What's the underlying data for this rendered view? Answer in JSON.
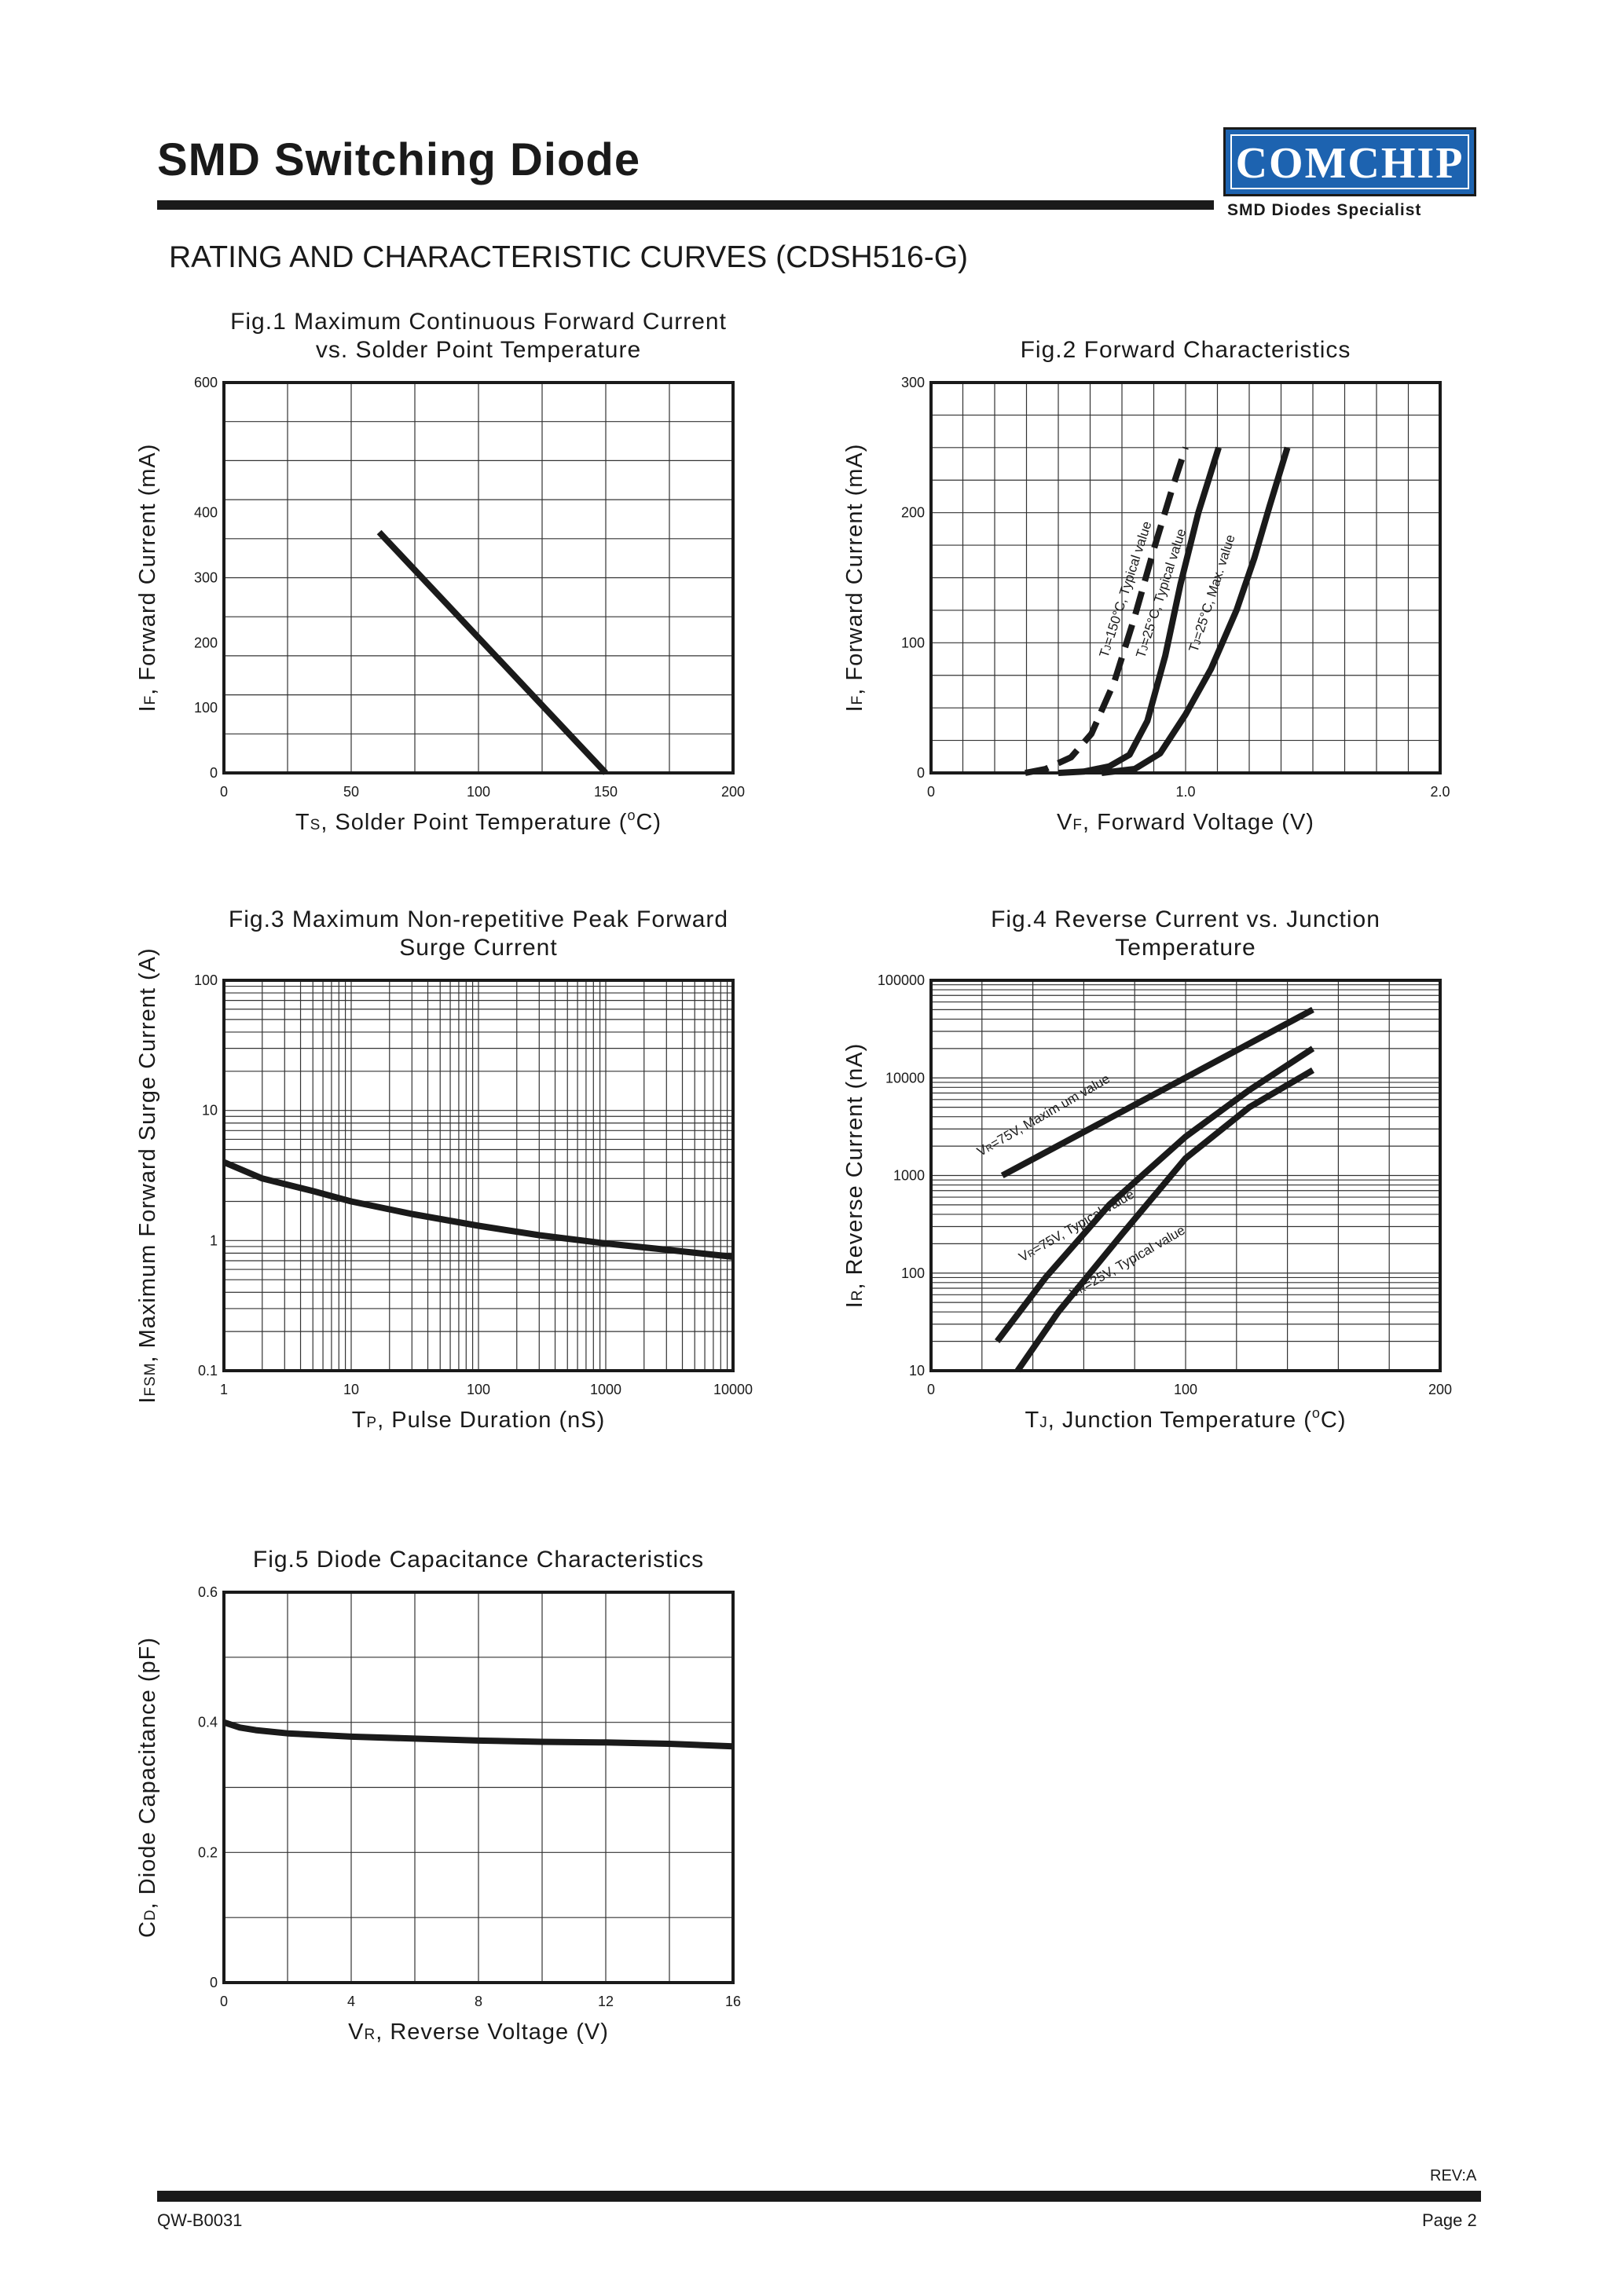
{
  "header": {
    "title": "SMD Switching Diode",
    "logo": {
      "text": "COMCHIP",
      "tagline": "SMD Diodes Specialist",
      "color": "#1d63b0"
    },
    "section_heading": "RATING AND CHARACTERISTIC CURVES (CDSH516-G)"
  },
  "footer": {
    "rev": "REV:A",
    "code": "QW-B0031",
    "page": "Page 2"
  },
  "chart_data": [
    {
      "id": "fig1",
      "type": "line",
      "scale": "linear",
      "title": [
        "Fig.1 Maximum Continuous Forward Current",
        "vs. Solder Point Temperature"
      ],
      "xlabel": {
        "main": "T",
        "sub": "S",
        "rest": ", Solder Point Temperature (",
        "sup": "o",
        "end": "C)"
      },
      "ylabel": {
        "main": "I",
        "sub": "F",
        "rest": ", Forward Current (mA)"
      },
      "xlim": [
        0,
        200
      ],
      "ylim": [
        0,
        600
      ],
      "xticks": [
        "0",
        "50",
        "100",
        "150",
        "200"
      ],
      "yticks": [
        "0",
        "100",
        "200",
        "300",
        "400",
        "600"
      ],
      "x_grid_step": 25,
      "y_grid_step": 60,
      "series": [
        {
          "name": "IF max",
          "style": "solid",
          "x": [
            61,
            150
          ],
          "y": [
            370,
            0
          ]
        }
      ]
    },
    {
      "id": "fig2",
      "type": "line",
      "scale": "linear",
      "title": [
        "Fig.2 Forward Characteristics"
      ],
      "xlabel": {
        "main": "V",
        "sub": "F",
        "rest": ", Forward Voltage (V)"
      },
      "ylabel": {
        "main": "I",
        "sub": "F",
        "rest": ", Forward Current (mA)"
      },
      "xlim": [
        0,
        2.0
      ],
      "ylim": [
        0,
        300
      ],
      "xticks": [
        "0",
        "1.0",
        "2.0"
      ],
      "yticks": [
        "0",
        "100",
        "200",
        "300"
      ],
      "x_grid_step": 0.125,
      "y_grid_step": 25,
      "series": [
        {
          "name": "TJ=150°C, Typical value",
          "style": "dashed",
          "label_parts": [
            "T",
            "J",
            "=150°C, Typical value"
          ],
          "label_at": [
            0.78,
            140
          ],
          "x": [
            0.37,
            0.45,
            0.55,
            0.63,
            0.72,
            0.8,
            0.88,
            0.95,
            1.0
          ],
          "y": [
            0,
            3,
            12,
            30,
            70,
            120,
            175,
            220,
            250
          ]
        },
        {
          "name": "TJ=25°C, Typical value",
          "style": "solid",
          "label_parts": [
            "T",
            "J",
            "=25°C, Typical value"
          ],
          "label_at": [
            0.92,
            137
          ],
          "x": [
            0.5,
            0.6,
            0.7,
            0.78,
            0.85,
            0.92,
            0.98,
            1.05,
            1.13
          ],
          "y": [
            0,
            1,
            5,
            14,
            40,
            90,
            145,
            200,
            250
          ]
        },
        {
          "name": "TJ=25°C, Max. value",
          "style": "solid",
          "label_parts": [
            "T",
            "J",
            "=25°C, Max. value"
          ],
          "label_at": [
            1.12,
            137
          ],
          "x": [
            0.67,
            0.8,
            0.9,
            1.0,
            1.1,
            1.2,
            1.27,
            1.33,
            1.4
          ],
          "y": [
            0,
            3,
            15,
            45,
            80,
            125,
            165,
            205,
            250
          ]
        }
      ]
    },
    {
      "id": "fig3",
      "type": "line",
      "scale": "loglog",
      "title": [
        "Fig.3 Maximum Non-repetitive Peak Forward",
        "Surge Current"
      ],
      "xlabel": {
        "main": "T",
        "sub": "P",
        "rest": ", Pulse Duration (nS)"
      },
      "ylabel": {
        "main": "I",
        "sub": "FSM",
        "rest": ", Maximum Forward Surge Current (A)"
      },
      "xlim": [
        1,
        10000
      ],
      "ylim": [
        0.1,
        100
      ],
      "xticks": [
        "1",
        "10",
        "100",
        "1000",
        "10000"
      ],
      "yticks": [
        "0.1",
        "1",
        "10",
        "100"
      ],
      "series": [
        {
          "name": "IFSM max",
          "style": "solid",
          "x": [
            1,
            2,
            5,
            10,
            30,
            100,
            300,
            1000,
            3000,
            10000
          ],
          "y": [
            4,
            3,
            2.4,
            2.0,
            1.6,
            1.3,
            1.1,
            0.95,
            0.85,
            0.75
          ]
        }
      ]
    },
    {
      "id": "fig4",
      "type": "line",
      "scale": "semilogy",
      "title": [
        "Fig.4 Reverse Current vs. Junction",
        "Temperature"
      ],
      "xlabel": {
        "main": "T",
        "sub": "J",
        "rest": ", Junction Temperature (",
        "sup": "o",
        "end": "C)"
      },
      "ylabel": {
        "main": "I",
        "sub": "R",
        "rest": ", Reverse Current (nA)"
      },
      "xlim": [
        0,
        200
      ],
      "ylim": [
        10,
        100000
      ],
      "xticks": [
        "0",
        "100",
        "200"
      ],
      "yticks": [
        "10",
        "100",
        "1000",
        "10000",
        "100000"
      ],
      "x_grid_step": 20,
      "series": [
        {
          "name": "VR=75V, Maximum value",
          "style": "solid",
          "label_parts": [
            "V",
            "R",
            "=75V, Maxim um value"
          ],
          "label_at": [
            45,
            3800
          ],
          "x": [
            28,
            150
          ],
          "y": [
            1000,
            50000
          ]
        },
        {
          "name": "VR=75V, Typical value",
          "style": "solid",
          "label_parts": [
            "V",
            "R",
            "=75V, Typical value"
          ],
          "label_at": [
            58,
            280
          ],
          "x": [
            26,
            45,
            70,
            100,
            125,
            150
          ],
          "y": [
            20,
            90,
            500,
            2500,
            7500,
            20000
          ]
        },
        {
          "name": "VR=25V, Typical value",
          "style": "solid",
          "label_parts": [
            "V",
            "R",
            "=25V, Typical value"
          ],
          "label_at": [
            78,
            120
          ],
          "x": [
            34,
            50,
            75,
            100,
            125,
            150
          ],
          "y": [
            10,
            40,
            250,
            1500,
            5000,
            12000
          ]
        }
      ]
    },
    {
      "id": "fig5",
      "type": "line",
      "scale": "linear",
      "title": [
        "Fig.5 Diode Capacitance Characteristics"
      ],
      "xlabel": {
        "main": "V",
        "sub": "R",
        "rest": ", Reverse Voltage (V)"
      },
      "ylabel": {
        "main": "C",
        "sub": "D",
        "rest": ", Diode Capacitance (pF)"
      },
      "xlim": [
        0,
        16
      ],
      "ylim": [
        0,
        0.6
      ],
      "xticks": [
        "0",
        "4",
        "8",
        "12",
        "16"
      ],
      "yticks": [
        "0",
        "0.2",
        "0.4",
        "0.6"
      ],
      "x_grid_step": 2,
      "y_grid_step": 0.1,
      "series": [
        {
          "name": "CD",
          "style": "solid",
          "x": [
            0,
            0.5,
            1,
            2,
            4,
            6,
            8,
            10,
            12,
            14,
            16
          ],
          "y": [
            0.4,
            0.392,
            0.388,
            0.383,
            0.378,
            0.375,
            0.372,
            0.37,
            0.369,
            0.367,
            0.363
          ]
        }
      ]
    }
  ]
}
